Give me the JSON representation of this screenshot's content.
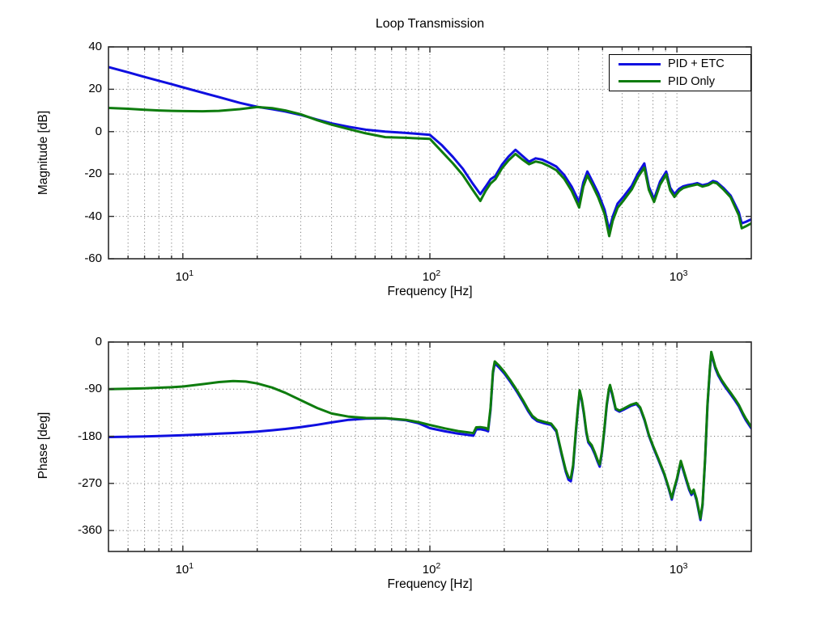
{
  "figure": {
    "background": "#ffffff"
  },
  "axes_style": {
    "box_color": "#2b2b2b",
    "grid_color": "#808080",
    "blue": "#0f0fe0",
    "green": "#0e7c0e"
  },
  "legend": {
    "items": [
      {
        "label": "PID + ETC",
        "color": "#0f0fe0"
      },
      {
        "label": "PID Only",
        "color": "#0e7c0e"
      }
    ]
  },
  "chart_data": [
    {
      "type": "line",
      "id": "magnitude",
      "title": "Loop Transmission",
      "xlabel": "Frequency [Hz]",
      "ylabel": "Magnitude [dB]",
      "xscale": "log",
      "grid": true,
      "legend_position": "top-right",
      "xlim": [
        5,
        2000
      ],
      "ylim": [
        -60,
        40
      ],
      "yticks": [
        40,
        20,
        0,
        -20,
        -40,
        -60
      ],
      "xticks": [
        {
          "value": 10,
          "base": "10",
          "exp": "1"
        },
        {
          "value": 100,
          "base": "10",
          "exp": "2"
        },
        {
          "value": 1000,
          "base": "10",
          "exp": "3"
        }
      ],
      "minor_gridlines": [
        6,
        7,
        8,
        9,
        20,
        30,
        40,
        50,
        60,
        70,
        80,
        90,
        200,
        300,
        400,
        500,
        600,
        700,
        800,
        900
      ],
      "x": [
        5,
        6,
        7,
        8,
        9,
        10,
        12,
        14,
        17,
        20,
        23,
        26,
        30,
        35,
        40,
        47,
        55,
        66,
        80,
        100,
        112,
        124,
        136,
        148,
        160,
        168,
        176,
        184,
        196,
        208,
        222,
        237,
        252,
        268,
        285,
        305,
        325,
        350,
        375,
        402,
        418,
        434,
        455,
        480,
        510,
        532,
        550,
        575,
        610,
        657,
        695,
        738,
        770,
        808,
        855,
        905,
        940,
        977,
        1020,
        1060,
        1110,
        1160,
        1210,
        1270,
        1340,
        1400,
        1450,
        1540,
        1650,
        1780,
        1830,
        1900,
        2000
      ],
      "series": [
        {
          "name": "PID + ETC",
          "color": "#0f0fe0",
          "y": [
            30.5,
            28.0,
            25.8,
            24.0,
            22.4,
            20.9,
            18.4,
            16.3,
            13.6,
            11.7,
            10.6,
            9.5,
            7.9,
            5.7,
            3.9,
            2.3,
            0.9,
            0.0,
            -0.6,
            -1.5,
            -6.5,
            -12,
            -17.5,
            -24,
            -29.5,
            -26,
            -22.5,
            -21,
            -15.5,
            -11.8,
            -8.6,
            -11.5,
            -14.2,
            -12.6,
            -13.2,
            -14.8,
            -16.5,
            -20.5,
            -26,
            -33.3,
            -24,
            -18.8,
            -23.5,
            -29,
            -37,
            -46.5,
            -40,
            -34,
            -30.5,
            -25.5,
            -19.8,
            -15,
            -26,
            -31.8,
            -23.5,
            -18.8,
            -26.5,
            -29.5,
            -27,
            -25.8,
            -25.2,
            -24.8,
            -24.3,
            -25.3,
            -24.6,
            -23.3,
            -23.8,
            -26.5,
            -30.2,
            -38,
            -43.3,
            -42.6,
            -41.4
          ]
        },
        {
          "name": "PID Only",
          "color": "#0e7c0e",
          "y": [
            11.2,
            10.8,
            10.3,
            10.0,
            9.8,
            9.7,
            9.6,
            9.8,
            10.6,
            11.6,
            11.1,
            10.0,
            8.2,
            5.4,
            3.3,
            1.2,
            -0.8,
            -2.6,
            -2.9,
            -3.4,
            -9.5,
            -15,
            -20.5,
            -27,
            -32.7,
            -28,
            -24.5,
            -22.5,
            -17.2,
            -13.6,
            -10.5,
            -13.2,
            -15.4,
            -14.1,
            -14.8,
            -16.4,
            -18.2,
            -22.3,
            -28,
            -35.8,
            -26,
            -20.7,
            -25.3,
            -31,
            -39,
            -49.3,
            -42,
            -36,
            -32.3,
            -27.2,
            -21.5,
            -17,
            -27.5,
            -33.2,
            -25,
            -20.2,
            -27.8,
            -30.8,
            -28,
            -26.6,
            -25.9,
            -25.4,
            -24.9,
            -25.9,
            -25.2,
            -23.9,
            -24.4,
            -27.2,
            -31,
            -39.5,
            -45.6,
            -44.7,
            -43.3
          ]
        }
      ]
    },
    {
      "type": "line",
      "id": "phase",
      "title": "",
      "xlabel": "Frequency [Hz]",
      "ylabel": "Phase [deg]",
      "xscale": "log",
      "grid": true,
      "xlim": [
        5,
        2000
      ],
      "ylim": [
        -400,
        0
      ],
      "yticks": [
        0,
        -90,
        -180,
        -270,
        -360
      ],
      "xticks": [
        {
          "value": 10,
          "base": "10",
          "exp": "1"
        },
        {
          "value": 100,
          "base": "10",
          "exp": "2"
        },
        {
          "value": 1000,
          "base": "10",
          "exp": "3"
        }
      ],
      "minor_gridlines": [
        6,
        7,
        8,
        9,
        20,
        30,
        40,
        50,
        60,
        70,
        80,
        90,
        200,
        300,
        400,
        500,
        600,
        700,
        800,
        900
      ],
      "x": [
        5,
        6,
        7,
        8,
        9,
        10,
        12,
        14,
        16,
        18,
        20,
        23,
        26,
        30,
        35,
        40,
        47,
        55,
        66,
        80,
        90,
        100,
        115,
        130,
        143,
        150,
        154,
        160,
        168,
        172,
        176,
        180,
        183,
        190,
        200,
        212,
        225,
        238,
        250,
        260,
        272,
        290,
        310,
        325,
        342,
        355,
        364,
        372,
        380,
        390,
        397,
        404,
        412,
        420,
        430,
        438,
        452,
        465,
        478,
        487,
        497,
        508,
        520,
        530,
        536,
        548,
        565,
        585,
        610,
        650,
        685,
        710,
        740,
        770,
        800,
        840,
        890,
        925,
        953,
        975,
        1000,
        1020,
        1037,
        1060,
        1090,
        1120,
        1145,
        1170,
        1200,
        1245,
        1270,
        1300,
        1330,
        1360,
        1378,
        1400,
        1430,
        1470,
        1520,
        1580,
        1650,
        1720,
        1780,
        1850,
        1900,
        1950,
        2000
      ],
      "series": [
        {
          "name": "PID + ETC",
          "color": "#0f0fe0",
          "y": [
            -181.5,
            -180.8,
            -180.2,
            -179.5,
            -178.8,
            -178,
            -176.5,
            -175,
            -173.8,
            -172.3,
            -171,
            -168.5,
            -166,
            -162.5,
            -158,
            -153.5,
            -148.5,
            -146.2,
            -145.8,
            -149.5,
            -155,
            -164.5,
            -170.5,
            -175,
            -177.5,
            -179,
            -167,
            -166.5,
            -168.5,
            -170.5,
            -130,
            -60,
            -41,
            -48,
            -60,
            -76.5,
            -95,
            -114,
            -132,
            -144,
            -151,
            -155,
            -158.5,
            -171,
            -217,
            -248,
            -263,
            -266,
            -240,
            -172,
            -131,
            -95,
            -112,
            -137,
            -174,
            -192,
            -201,
            -214,
            -229,
            -238,
            -212,
            -171,
            -121,
            -94,
            -85,
            -102,
            -129,
            -133,
            -129,
            -122,
            -118.5,
            -127,
            -150,
            -179,
            -200,
            -224,
            -254,
            -279,
            -301,
            -282,
            -264,
            -245,
            -230,
            -245,
            -264,
            -282,
            -292,
            -285,
            -302,
            -340,
            -312,
            -227,
            -122,
            -52,
            -23,
            -34,
            -50,
            -64,
            -76,
            -88,
            -100,
            -112,
            -123,
            -139,
            -149,
            -157,
            -165
          ]
        },
        {
          "name": "PID Only",
          "color": "#0e7c0e",
          "y": [
            -90,
            -89.2,
            -88.3,
            -87.3,
            -86.3,
            -85,
            -80.5,
            -76.5,
            -74.5,
            -75.5,
            -79,
            -87,
            -97,
            -111,
            -126,
            -136.5,
            -142.5,
            -145,
            -145.3,
            -148.5,
            -153,
            -158.5,
            -165,
            -170,
            -172.5,
            -174,
            -163,
            -162.5,
            -164,
            -167,
            -126,
            -56,
            -37,
            -44.5,
            -57,
            -73.5,
            -92,
            -111,
            -129,
            -141,
            -148.5,
            -152.5,
            -156,
            -168.5,
            -214,
            -245,
            -258,
            -260,
            -235,
            -168,
            -127,
            -92,
            -109,
            -134,
            -171,
            -189,
            -197,
            -211,
            -226,
            -234,
            -209,
            -168,
            -118,
            -91,
            -82,
            -99,
            -127,
            -131,
            -127,
            -120,
            -116.5,
            -125,
            -148,
            -177,
            -198,
            -222,
            -252,
            -277,
            -298,
            -279,
            -261,
            -242,
            -227,
            -242,
            -261,
            -279,
            -289,
            -282,
            -299,
            -337,
            -309,
            -224,
            -119,
            -49,
            -19,
            -31,
            -47,
            -61,
            -73,
            -85,
            -97,
            -109,
            -120,
            -136,
            -146,
            -154,
            -162
          ]
        }
      ]
    }
  ]
}
